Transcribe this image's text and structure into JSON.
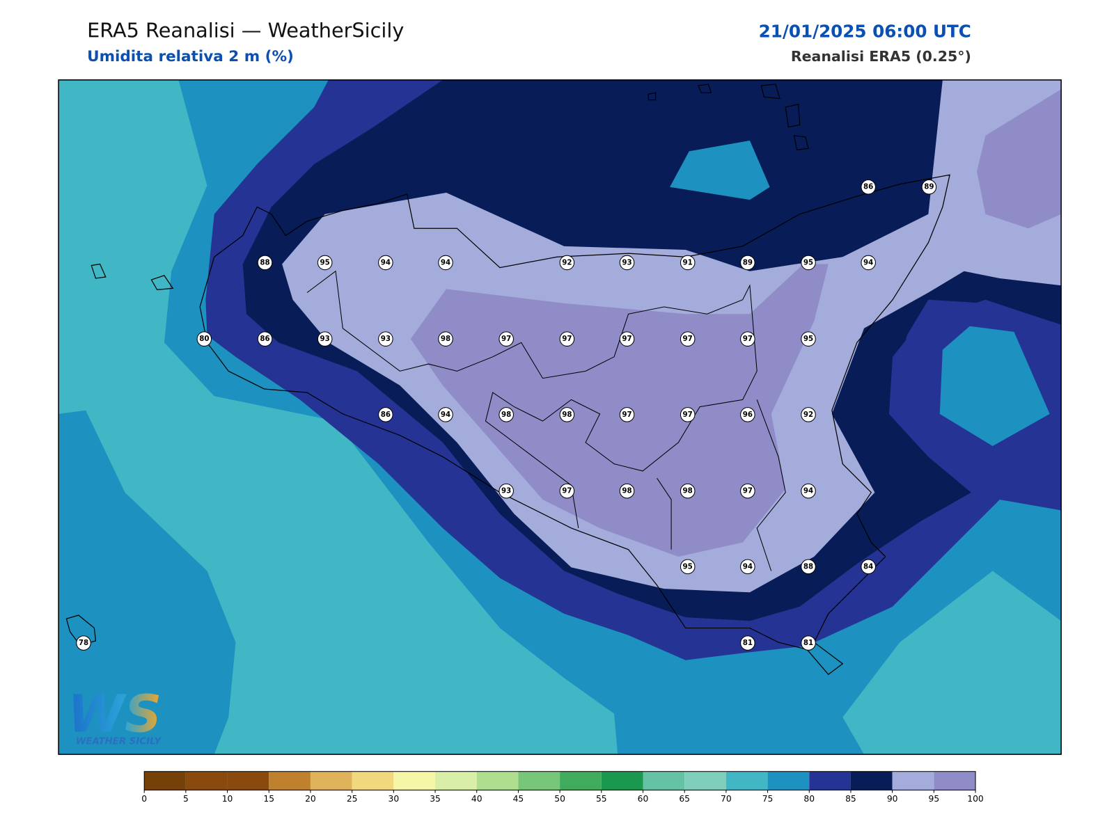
{
  "header": {
    "title": "ERA5 Reanalisi — WeatherSicily",
    "subtitle": "Umidita relativa 2 m (%)",
    "datetime": "21/01/2025 06:00 UTC",
    "source": "Reanalisi ERA5 (0.25°)"
  },
  "stations": {
    "values": [
      86,
      89,
      88,
      95,
      94,
      94,
      92,
      93,
      91,
      89,
      95,
      94,
      80,
      86,
      93,
      93,
      98,
      97,
      97,
      97,
      97,
      97,
      95,
      86,
      94,
      98,
      98,
      97,
      97,
      96,
      92,
      93,
      97,
      98,
      98,
      97,
      94,
      95,
      94,
      88,
      84,
      78,
      81,
      81
    ]
  },
  "colorbar": {
    "ticks": [
      0,
      5,
      10,
      15,
      20,
      25,
      30,
      35,
      40,
      45,
      50,
      55,
      60,
      65,
      70,
      75,
      80,
      85,
      90,
      95,
      100
    ],
    "colors": [
      "#764108",
      "#8a4a0d",
      "#8a4a0d",
      "#bf812d",
      "#dfb25c",
      "#f1d77e",
      "#f6f6a8",
      "#d9eea6",
      "#addf8e",
      "#78c679",
      "#41ab5d",
      "#1a9850",
      "#66c2a4",
      "#7fcdbb",
      "#41b6c4",
      "#1d91c0",
      "#253494",
      "#081d58",
      "#a3acdb",
      "#8f8cc8"
    ]
  },
  "logo": {
    "text": "WEATHER SICILY"
  }
}
